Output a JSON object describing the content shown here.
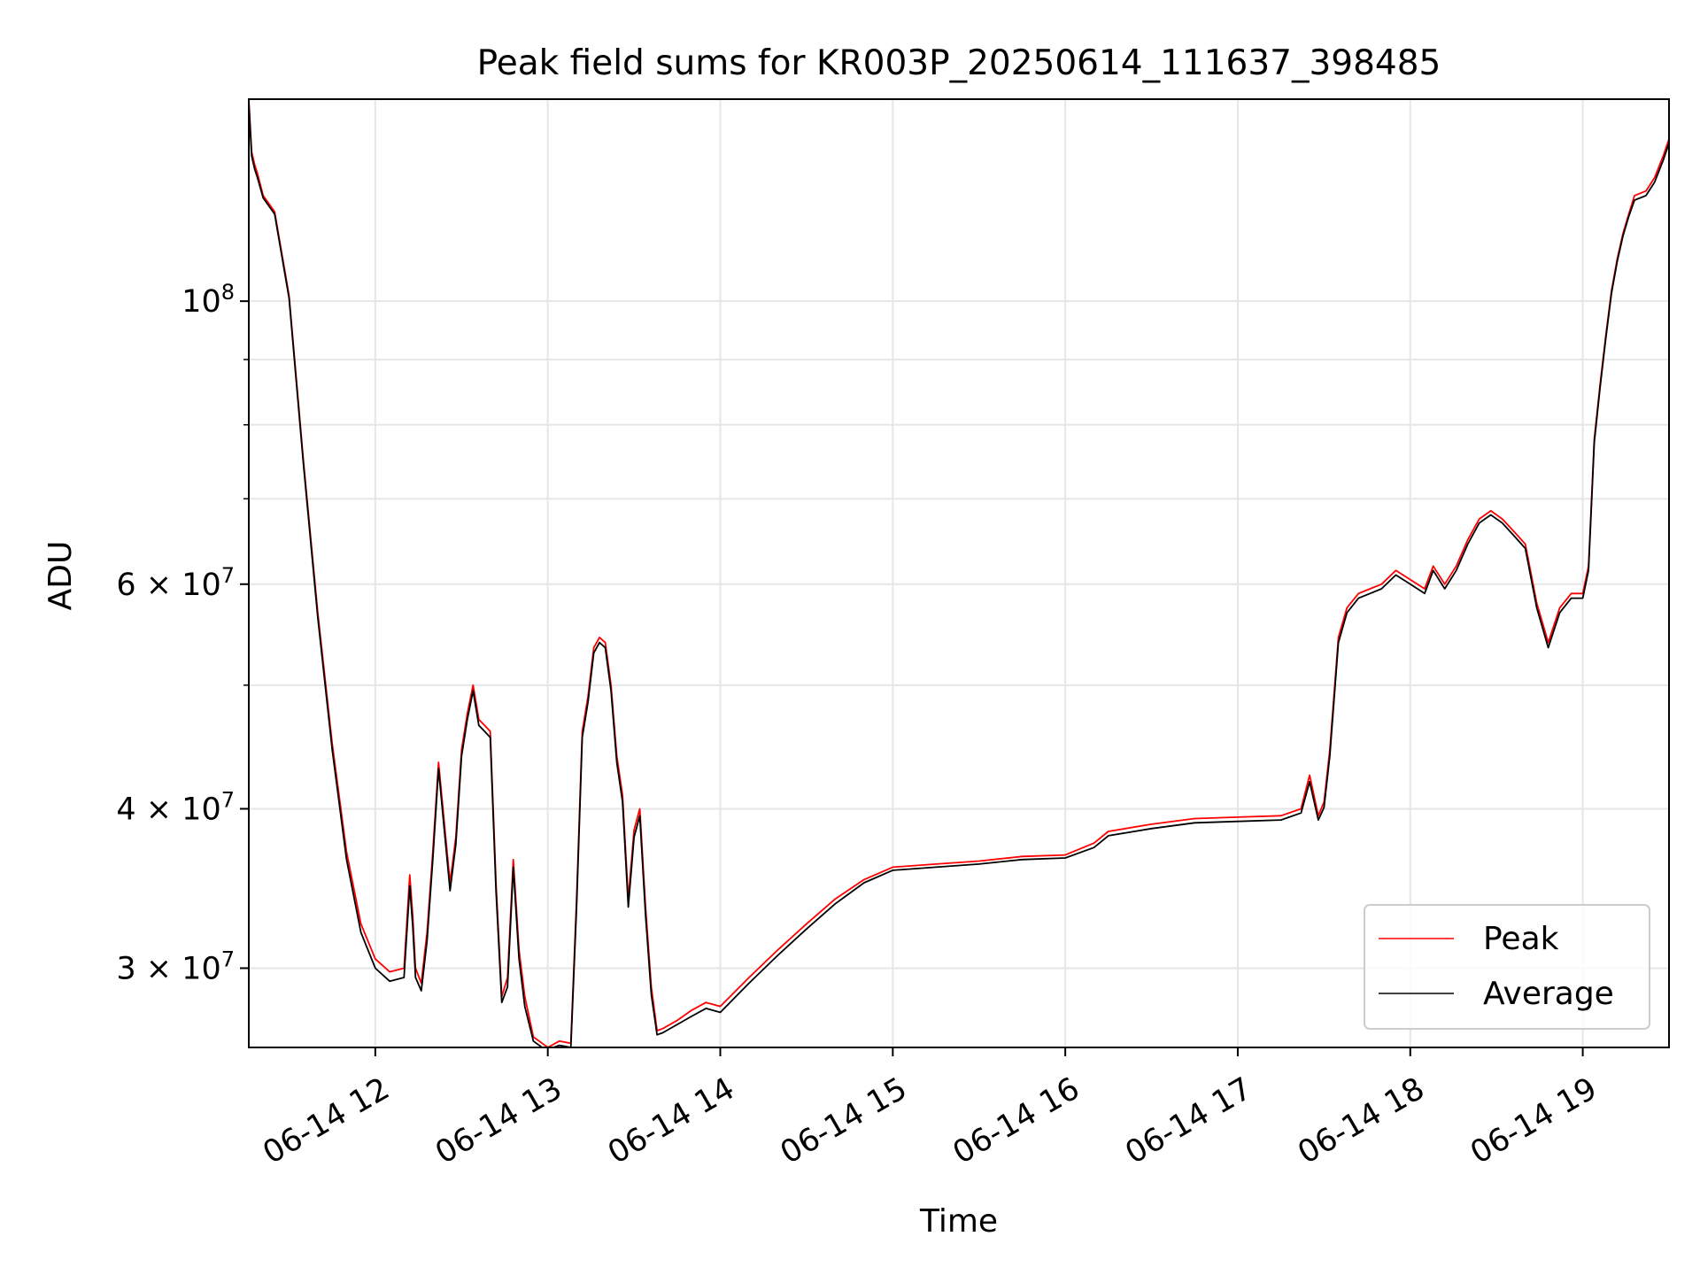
{
  "chart_data": {
    "type": "line",
    "title": "Peak field sums for KR003P_20250614_111637_398485",
    "xlabel": "Time",
    "ylabel": "ADU",
    "yscale": "log",
    "xlim": [
      "2025-06-14 11:16",
      "2025-06-14 19:30"
    ],
    "ylim": [
      26000000,
      144000000
    ],
    "grid": true,
    "legend_position": "lower right",
    "x_ticks": [
      {
        "value": "2025-06-14 12:00",
        "label": "06-14 12"
      },
      {
        "value": "2025-06-14 13:00",
        "label": "06-14 13"
      },
      {
        "value": "2025-06-14 14:00",
        "label": "06-14 14"
      },
      {
        "value": "2025-06-14 15:00",
        "label": "06-14 15"
      },
      {
        "value": "2025-06-14 16:00",
        "label": "06-14 16"
      },
      {
        "value": "2025-06-14 17:00",
        "label": "06-14 17"
      },
      {
        "value": "2025-06-14 18:00",
        "label": "06-14 18"
      },
      {
        "value": "2025-06-14 19:00",
        "label": "06-14 19"
      }
    ],
    "y_ticks": [
      {
        "value": 30000000,
        "base": "3 × 10",
        "exp": "7"
      },
      {
        "value": 40000000,
        "base": "4 × 10",
        "exp": "7"
      },
      {
        "value": 60000000,
        "base": "6 × 10",
        "exp": "7"
      },
      {
        "value": 100000000,
        "base": "10",
        "exp": "8"
      }
    ],
    "y_minor_ticks": [
      50000000,
      70000000,
      80000000,
      90000000
    ],
    "x": [
      "2025-06-14 11:16",
      "2025-06-14 11:17",
      "2025-06-14 11:18",
      "2025-06-14 11:19",
      "2025-06-14 11:21",
      "2025-06-14 11:25",
      "2025-06-14 11:30",
      "2025-06-14 11:35",
      "2025-06-14 11:40",
      "2025-06-14 11:45",
      "2025-06-14 11:50",
      "2025-06-14 11:55",
      "2025-06-14 12:00",
      "2025-06-14 12:05",
      "2025-06-14 12:10",
      "2025-06-14 12:12",
      "2025-06-14 12:13",
      "2025-06-14 12:14",
      "2025-06-14 12:16",
      "2025-06-14 12:18",
      "2025-06-14 12:20",
      "2025-06-14 12:22",
      "2025-06-14 12:24",
      "2025-06-14 12:26",
      "2025-06-14 12:28",
      "2025-06-14 12:30",
      "2025-06-14 12:32",
      "2025-06-14 12:34",
      "2025-06-14 12:36",
      "2025-06-14 12:38",
      "2025-06-14 12:40",
      "2025-06-14 12:42",
      "2025-06-14 12:44",
      "2025-06-14 12:46",
      "2025-06-14 12:48",
      "2025-06-14 12:50",
      "2025-06-14 12:52",
      "2025-06-14 12:55",
      "2025-06-14 12:58",
      "2025-06-14 13:00",
      "2025-06-14 13:04",
      "2025-06-14 13:08",
      "2025-06-14 13:10",
      "2025-06-14 13:12",
      "2025-06-14 13:14",
      "2025-06-14 13:16",
      "2025-06-14 13:18",
      "2025-06-14 13:20",
      "2025-06-14 13:22",
      "2025-06-14 13:24",
      "2025-06-14 13:26",
      "2025-06-14 13:28",
      "2025-06-14 13:30",
      "2025-06-14 13:32",
      "2025-06-14 13:34",
      "2025-06-14 13:36",
      "2025-06-14 13:38",
      "2025-06-14 13:40",
      "2025-06-14 13:45",
      "2025-06-14 13:50",
      "2025-06-14 13:55",
      "2025-06-14 14:00",
      "2025-06-14 14:10",
      "2025-06-14 14:20",
      "2025-06-14 14:30",
      "2025-06-14 14:40",
      "2025-06-14 14:50",
      "2025-06-14 15:00",
      "2025-06-14 15:15",
      "2025-06-14 15:30",
      "2025-06-14 15:45",
      "2025-06-14 16:00",
      "2025-06-14 16:10",
      "2025-06-14 16:15",
      "2025-06-14 16:30",
      "2025-06-14 16:45",
      "2025-06-14 17:00",
      "2025-06-14 17:15",
      "2025-06-14 17:22",
      "2025-06-14 17:25",
      "2025-06-14 17:28",
      "2025-06-14 17:30",
      "2025-06-14 17:32",
      "2025-06-14 17:35",
      "2025-06-14 17:38",
      "2025-06-14 17:42",
      "2025-06-14 17:46",
      "2025-06-14 17:50",
      "2025-06-14 17:55",
      "2025-06-14 18:00",
      "2025-06-14 18:05",
      "2025-06-14 18:08",
      "2025-06-14 18:12",
      "2025-06-14 18:16",
      "2025-06-14 18:20",
      "2025-06-14 18:24",
      "2025-06-14 18:28",
      "2025-06-14 18:32",
      "2025-06-14 18:36",
      "2025-06-14 18:40",
      "2025-06-14 18:44",
      "2025-06-14 18:48",
      "2025-06-14 18:52",
      "2025-06-14 18:56",
      "2025-06-14 19:00",
      "2025-06-14 19:02",
      "2025-06-14 19:04",
      "2025-06-14 19:06",
      "2025-06-14 19:08",
      "2025-06-14 19:10",
      "2025-06-14 19:12",
      "2025-06-14 19:14",
      "2025-06-14 19:16",
      "2025-06-14 19:18",
      "2025-06-14 19:20",
      "2025-06-14 19:22",
      "2025-06-14 19:25",
      "2025-06-14 19:28",
      "2025-06-14 19:30"
    ],
    "series": [
      {
        "name": "Peak",
        "color": "#ff0000",
        "values": [
          144000000,
          131000000,
          128000000,
          126000000,
          121000000,
          117500000,
          101000000,
          75000000,
          57000000,
          45000000,
          37000000,
          32500000,
          30500000,
          29800000,
          30000000,
          35500000,
          33000000,
          30000000,
          29200000,
          32000000,
          37000000,
          43500000,
          39000000,
          35000000,
          38000000,
          44500000,
          47500000,
          50000000,
          47000000,
          46500000,
          46000000,
          35000000,
          28500000,
          29500000,
          36500000,
          31000000,
          28500000,
          26500000,
          26200000,
          26000000,
          26300000,
          26200000,
          34000000,
          46000000,
          49000000,
          53500000,
          54500000,
          54000000,
          50000000,
          44000000,
          41000000,
          34000000,
          38500000,
          40000000,
          33500000,
          29000000,
          26800000,
          26900000,
          27300000,
          27800000,
          28200000,
          28000000,
          29500000,
          31000000,
          32500000,
          34000000,
          35200000,
          36000000,
          36200000,
          36400000,
          36700000,
          36800000,
          37600000,
          38400000,
          38900000,
          39300000,
          39400000,
          39500000,
          40000000,
          42500000,
          39500000,
          40500000,
          44500000,
          54500000,
          57500000,
          59000000,
          59500000,
          60000000,
          61500000,
          60500000,
          59500000,
          62000000,
          60000000,
          62000000,
          65000000,
          67500000,
          68500000,
          67500000,
          66000000,
          64500000,
          58000000,
          54000000,
          57500000,
          59000000,
          59000000,
          62000000,
          78000000,
          86000000,
          94000000,
          102000000,
          108000000,
          113000000,
          117000000,
          121000000,
          121500000,
          122000000,
          125000000,
          130000000,
          134000000
        ]
      },
      {
        "name": "Average",
        "color": "#000000",
        "values": [
          143000000,
          130000000,
          127000000,
          125000000,
          120500000,
          117000000,
          100500000,
          74500000,
          56500000,
          44500000,
          36500000,
          32000000,
          30000000,
          29300000,
          29500000,
          34800000,
          32400000,
          29500000,
          28800000,
          31500000,
          36500000,
          43000000,
          38500000,
          34500000,
          37500000,
          44000000,
          47000000,
          49500000,
          46500000,
          46000000,
          45500000,
          34500000,
          28200000,
          29000000,
          36000000,
          30500000,
          28000000,
          26300000,
          26000000,
          25900000,
          26100000,
          26000000,
          33500000,
          45500000,
          48500000,
          53000000,
          54000000,
          53500000,
          49500000,
          43500000,
          40500000,
          33500000,
          38000000,
          39500000,
          33000000,
          28600000,
          26600000,
          26700000,
          27100000,
          27500000,
          27900000,
          27700000,
          29200000,
          30700000,
          32200000,
          33700000,
          35000000,
          35800000,
          36000000,
          36200000,
          36500000,
          36600000,
          37300000,
          38100000,
          38600000,
          39000000,
          39100000,
          39200000,
          39700000,
          42000000,
          39200000,
          40100000,
          44000000,
          54000000,
          57000000,
          58500000,
          59000000,
          59500000,
          61000000,
          60000000,
          59000000,
          61500000,
          59500000,
          61500000,
          64500000,
          67000000,
          68000000,
          67000000,
          65500000,
          64000000,
          57500000,
          53500000,
          57000000,
          58500000,
          58500000,
          61500000,
          77500000,
          85500000,
          93500000,
          101500000,
          107500000,
          112500000,
          116500000,
          120000000,
          120500000,
          121000000,
          124000000,
          129000000,
          133000000
        ]
      }
    ]
  }
}
